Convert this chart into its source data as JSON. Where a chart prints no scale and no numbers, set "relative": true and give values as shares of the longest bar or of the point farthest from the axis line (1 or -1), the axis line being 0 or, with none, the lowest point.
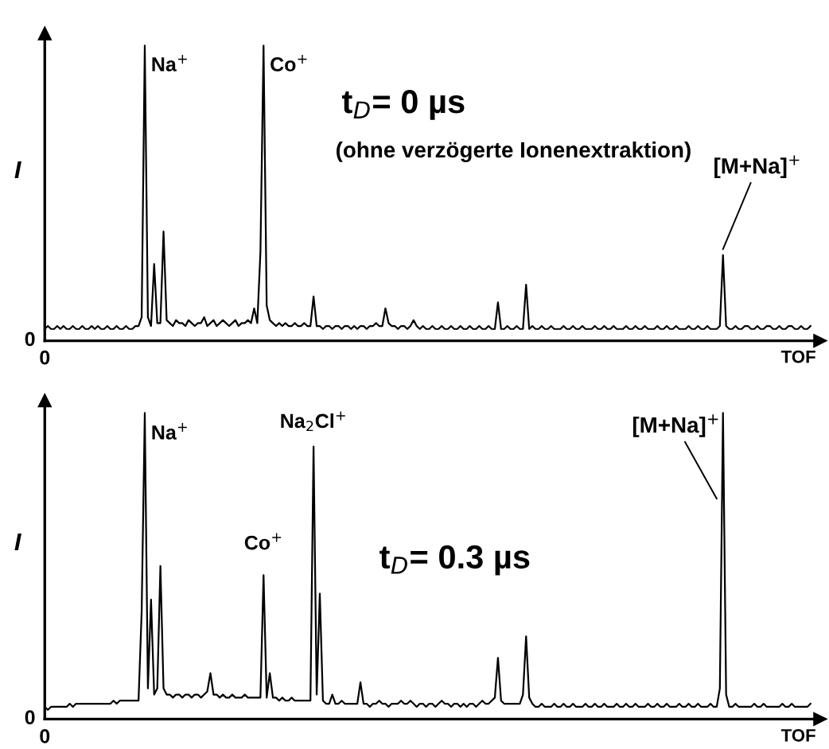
{
  "chart_data": [
    {
      "type": "line",
      "relative": true,
      "xlabel": "TOF",
      "ylabel": "I",
      "grid": false,
      "legend": false,
      "marker": "none",
      "line_style": "solid",
      "annotations": [
        "0",
        "0",
        "Na$^{+}$",
        "Co$^{+}$",
        "t$_{D}$= 0 µs",
        "(ohne verzögerte Ionenextraktion)",
        "[M+Na]$^{+}$"
      ],
      "categories": [
        null,
        null,
        null,
        null,
        null,
        null,
        null,
        null,
        null,
        null,
        null,
        null,
        null,
        null,
        null,
        null,
        null,
        null,
        null,
        null,
        null,
        null,
        null,
        null,
        null,
        null,
        null,
        null,
        null,
        null,
        null,
        null,
        null,
        null,
        null,
        null,
        null,
        null,
        null,
        null,
        null,
        null,
        null,
        null,
        null,
        null,
        null,
        null,
        null,
        null,
        null,
        null,
        null,
        null,
        null,
        null,
        null,
        null,
        null,
        null,
        null,
        null,
        null,
        null,
        null,
        null,
        null,
        null,
        null,
        null,
        null,
        null,
        null,
        null,
        null,
        null,
        null,
        null,
        null,
        null,
        null,
        null,
        null,
        null,
        null,
        null,
        null,
        null,
        null,
        null,
        null,
        null,
        null,
        null,
        null,
        null,
        null,
        null,
        null,
        null,
        null,
        null,
        null,
        null,
        null,
        null,
        null,
        null,
        null,
        null,
        null,
        null,
        null,
        null,
        null,
        null,
        null,
        null,
        null,
        null,
        null,
        null,
        null,
        null,
        null,
        null,
        null,
        null,
        null,
        null,
        null,
        null,
        null,
        null,
        null,
        null,
        null,
        null,
        null,
        null,
        null,
        null,
        null,
        null,
        null,
        null,
        null,
        null,
        null,
        null,
        null,
        null,
        null,
        null,
        null,
        null,
        null,
        null,
        null,
        null,
        null,
        null,
        null,
        null,
        null,
        null,
        null,
        null,
        null,
        null,
        null,
        null,
        null,
        null,
        null,
        null,
        null,
        null,
        null,
        null,
        null,
        null,
        null,
        null,
        null,
        null,
        null,
        null,
        null,
        null,
        null,
        null,
        null,
        null,
        null,
        null,
        null,
        null,
        null,
        null,
        null,
        null,
        null,
        null,
        null,
        null,
        null,
        null,
        null,
        null,
        null,
        null,
        null,
        null,
        null,
        null,
        null,
        null,
        null,
        null,
        null,
        null,
        null,
        null,
        null,
        null,
        null,
        null,
        null,
        null,
        null,
        null,
        null,
        null,
        null,
        null,
        null,
        null,
        null,
        null,
        null,
        null,
        null,
        null,
        null,
        null
      ],
      "series": [
        {
          "color": "#000000",
          "values": [
            0.04,
            0.05,
            0.04,
            0.04,
            0.05,
            0.04,
            0.05,
            0.04,
            0.04,
            0.05,
            0.04,
            0.04,
            0.05,
            0.04,
            0.04,
            0.05,
            0.04,
            0.05,
            0.04,
            0.04,
            0.05,
            0.04,
            0.04,
            0.05,
            0.04,
            0.04,
            0.05,
            0.04,
            0.04,
            0.05,
            0.05,
            0.08,
            1.0,
            0.08,
            0.05,
            0.26,
            0.06,
            0.06,
            0.37,
            0.07,
            0.06,
            0.05,
            0.07,
            0.06,
            0.06,
            0.05,
            0.07,
            0.06,
            0.05,
            0.06,
            0.06,
            0.08,
            0.05,
            0.06,
            0.07,
            0.05,
            0.06,
            0.07,
            0.06,
            0.05,
            0.06,
            0.07,
            0.05,
            0.06,
            0.06,
            0.07,
            0.06,
            0.11,
            0.06,
            0.3,
            1.0,
            0.12,
            0.07,
            0.06,
            0.05,
            0.06,
            0.05,
            0.06,
            0.05,
            0.05,
            0.06,
            0.05,
            0.05,
            0.06,
            0.05,
            0.05,
            0.15,
            0.05,
            0.05,
            0.04,
            0.05,
            0.05,
            0.04,
            0.05,
            0.05,
            0.04,
            0.05,
            0.05,
            0.04,
            0.05,
            0.04,
            0.05,
            0.05,
            0.04,
            0.05,
            0.05,
            0.06,
            0.05,
            0.05,
            0.11,
            0.06,
            0.05,
            0.05,
            0.04,
            0.05,
            0.05,
            0.04,
            0.05,
            0.07,
            0.05,
            0.04,
            0.05,
            0.04,
            0.04,
            0.05,
            0.04,
            0.04,
            0.05,
            0.04,
            0.04,
            0.05,
            0.04,
            0.04,
            0.05,
            0.04,
            0.04,
            0.05,
            0.04,
            0.04,
            0.05,
            0.04,
            0.04,
            0.05,
            0.04,
            0.04,
            0.13,
            0.04,
            0.04,
            0.05,
            0.04,
            0.04,
            0.05,
            0.04,
            0.04,
            0.19,
            0.04,
            0.05,
            0.04,
            0.04,
            0.05,
            0.04,
            0.04,
            0.05,
            0.04,
            0.04,
            0.04,
            0.05,
            0.04,
            0.04,
            0.05,
            0.04,
            0.04,
            0.05,
            0.04,
            0.04,
            0.04,
            0.05,
            0.04,
            0.04,
            0.05,
            0.04,
            0.04,
            0.05,
            0.04,
            0.04,
            0.04,
            0.05,
            0.04,
            0.04,
            0.05,
            0.04,
            0.04,
            0.05,
            0.04,
            0.04,
            0.04,
            0.05,
            0.04,
            0.04,
            0.05,
            0.04,
            0.04,
            0.05,
            0.04,
            0.04,
            0.04,
            0.05,
            0.04,
            0.04,
            0.05,
            0.04,
            0.04,
            0.05,
            0.04,
            0.04,
            0.04,
            0.05,
            0.29,
            0.05,
            0.04,
            0.04,
            0.05,
            0.04,
            0.04,
            0.05,
            0.05,
            0.04,
            0.04,
            0.05,
            0.04,
            0.04,
            0.05,
            0.05,
            0.04,
            0.04,
            0.05,
            0.04,
            0.04,
            0.05,
            0.05,
            0.04,
            0.04,
            0.05,
            0.04,
            0.04,
            0.05
          ]
        }
      ]
    },
    {
      "type": "line",
      "relative": true,
      "xlabel": "TOF",
      "ylabel": "I",
      "grid": false,
      "legend": false,
      "marker": "none",
      "line_style": "solid",
      "annotations": [
        "0",
        "0",
        "Na$^{+}$",
        "Co$^{+}$",
        "Na$_{2}$Cl$^{+}$",
        "[M+Na]$^{+}$",
        "t$_{D}$= 0.3 µs"
      ],
      "categories": [
        null,
        null,
        null,
        null,
        null,
        null,
        null,
        null,
        null,
        null,
        null,
        null,
        null,
        null,
        null,
        null,
        null,
        null,
        null,
        null,
        null,
        null,
        null,
        null,
        null,
        null,
        null,
        null,
        null,
        null,
        null,
        null,
        null,
        null,
        null,
        null,
        null,
        null,
        null,
        null,
        null,
        null,
        null,
        null,
        null,
        null,
        null,
        null,
        null,
        null,
        null,
        null,
        null,
        null,
        null,
        null,
        null,
        null,
        null,
        null,
        null,
        null,
        null,
        null,
        null,
        null,
        null,
        null,
        null,
        null,
        null,
        null,
        null,
        null,
        null,
        null,
        null,
        null,
        null,
        null,
        null,
        null,
        null,
        null,
        null,
        null,
        null,
        null,
        null,
        null,
        null,
        null,
        null,
        null,
        null,
        null,
        null,
        null,
        null,
        null,
        null,
        null,
        null,
        null,
        null,
        null,
        null,
        null,
        null,
        null,
        null,
        null,
        null,
        null,
        null,
        null,
        null,
        null,
        null,
        null,
        null,
        null,
        null,
        null,
        null,
        null,
        null,
        null,
        null,
        null,
        null,
        null,
        null,
        null,
        null,
        null,
        null,
        null,
        null,
        null,
        null,
        null,
        null,
        null,
        null,
        null,
        null,
        null,
        null,
        null,
        null,
        null,
        null,
        null,
        null,
        null,
        null,
        null,
        null,
        null,
        null,
        null,
        null,
        null,
        null,
        null,
        null,
        null,
        null,
        null,
        null,
        null,
        null,
        null,
        null,
        null,
        null,
        null,
        null,
        null,
        null,
        null,
        null,
        null,
        null,
        null,
        null,
        null,
        null,
        null,
        null,
        null,
        null,
        null,
        null,
        null,
        null,
        null,
        null,
        null,
        null,
        null,
        null,
        null,
        null,
        null,
        null,
        null,
        null,
        null,
        null,
        null,
        null,
        null,
        null,
        null,
        null,
        null,
        null,
        null,
        null,
        null,
        null,
        null,
        null,
        null,
        null,
        null,
        null,
        null,
        null,
        null,
        null,
        null,
        null,
        null,
        null,
        null,
        null,
        null,
        null,
        null,
        null,
        null,
        null,
        null
      ],
      "series": [
        {
          "color": "#000000",
          "values": [
            0.04,
            0.03,
            0.04,
            0.04,
            0.04,
            0.04,
            0.04,
            0.04,
            0.05,
            0.04,
            0.05,
            0.05,
            0.05,
            0.05,
            0.05,
            0.05,
            0.05,
            0.05,
            0.05,
            0.05,
            0.05,
            0.05,
            0.06,
            0.05,
            0.06,
            0.06,
            0.06,
            0.06,
            0.06,
            0.06,
            0.06,
            0.35,
            1.0,
            0.1,
            0.39,
            0.08,
            0.1,
            0.5,
            0.1,
            0.08,
            0.08,
            0.07,
            0.08,
            0.08,
            0.07,
            0.08,
            0.08,
            0.07,
            0.08,
            0.08,
            0.07,
            0.08,
            0.09,
            0.15,
            0.08,
            0.08,
            0.07,
            0.08,
            0.07,
            0.07,
            0.08,
            0.07,
            0.07,
            0.07,
            0.08,
            0.07,
            0.07,
            0.07,
            0.07,
            0.07,
            0.47,
            0.07,
            0.15,
            0.07,
            0.07,
            0.06,
            0.07,
            0.06,
            0.06,
            0.07,
            0.06,
            0.06,
            0.06,
            0.06,
            0.06,
            0.06,
            0.89,
            0.08,
            0.41,
            0.06,
            0.05,
            0.05,
            0.08,
            0.05,
            0.05,
            0.06,
            0.05,
            0.05,
            0.05,
            0.05,
            0.05,
            0.12,
            0.05,
            0.05,
            0.04,
            0.05,
            0.05,
            0.06,
            0.05,
            0.05,
            0.04,
            0.05,
            0.05,
            0.05,
            0.06,
            0.05,
            0.05,
            0.06,
            0.05,
            0.04,
            0.05,
            0.05,
            0.04,
            0.05,
            0.05,
            0.04,
            0.05,
            0.06,
            0.05,
            0.05,
            0.04,
            0.05,
            0.05,
            0.04,
            0.05,
            0.04,
            0.05,
            0.05,
            0.04,
            0.05,
            0.06,
            0.05,
            0.05,
            0.06,
            0.07,
            0.2,
            0.06,
            0.05,
            0.05,
            0.05,
            0.05,
            0.05,
            0.05,
            0.08,
            0.27,
            0.07,
            0.05,
            0.04,
            0.04,
            0.05,
            0.04,
            0.04,
            0.04,
            0.05,
            0.04,
            0.04,
            0.05,
            0.04,
            0.04,
            0.05,
            0.04,
            0.04,
            0.04,
            0.05,
            0.04,
            0.04,
            0.05,
            0.04,
            0.04,
            0.05,
            0.04,
            0.04,
            0.04,
            0.05,
            0.04,
            0.04,
            0.05,
            0.04,
            0.04,
            0.05,
            0.04,
            0.04,
            0.04,
            0.05,
            0.04,
            0.04,
            0.05,
            0.04,
            0.04,
            0.05,
            0.04,
            0.04,
            0.04,
            0.05,
            0.04,
            0.04,
            0.05,
            0.04,
            0.04,
            0.05,
            0.04,
            0.04,
            0.04,
            0.05,
            0.04,
            0.04,
            0.1,
            1.0,
            0.08,
            0.04,
            0.04,
            0.05,
            0.04,
            0.04,
            0.04,
            0.04,
            0.04,
            0.05,
            0.04,
            0.04,
            0.05,
            0.04,
            0.04,
            0.04,
            0.04,
            0.04,
            0.05,
            0.04,
            0.04,
            0.05,
            0.04,
            0.04,
            0.04,
            0.04,
            0.04,
            0.05
          ]
        }
      ]
    }
  ]
}
